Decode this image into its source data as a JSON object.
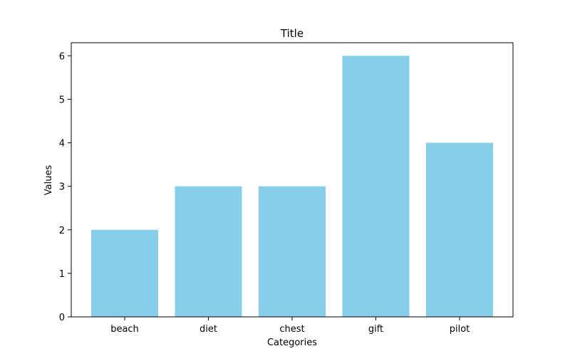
{
  "chart_data": {
    "type": "bar",
    "title": "Title",
    "xlabel": "Categories",
    "ylabel": "Values",
    "categories": [
      "beach",
      "diet",
      "chest",
      "gift",
      "pilot"
    ],
    "values": [
      2,
      3,
      3,
      6,
      4
    ],
    "ylim": [
      0,
      6.3
    ],
    "yticks": [
      0,
      1,
      2,
      3,
      4,
      5,
      6
    ],
    "bar_color": "#87ceeb",
    "grid": false,
    "legend": "none"
  }
}
